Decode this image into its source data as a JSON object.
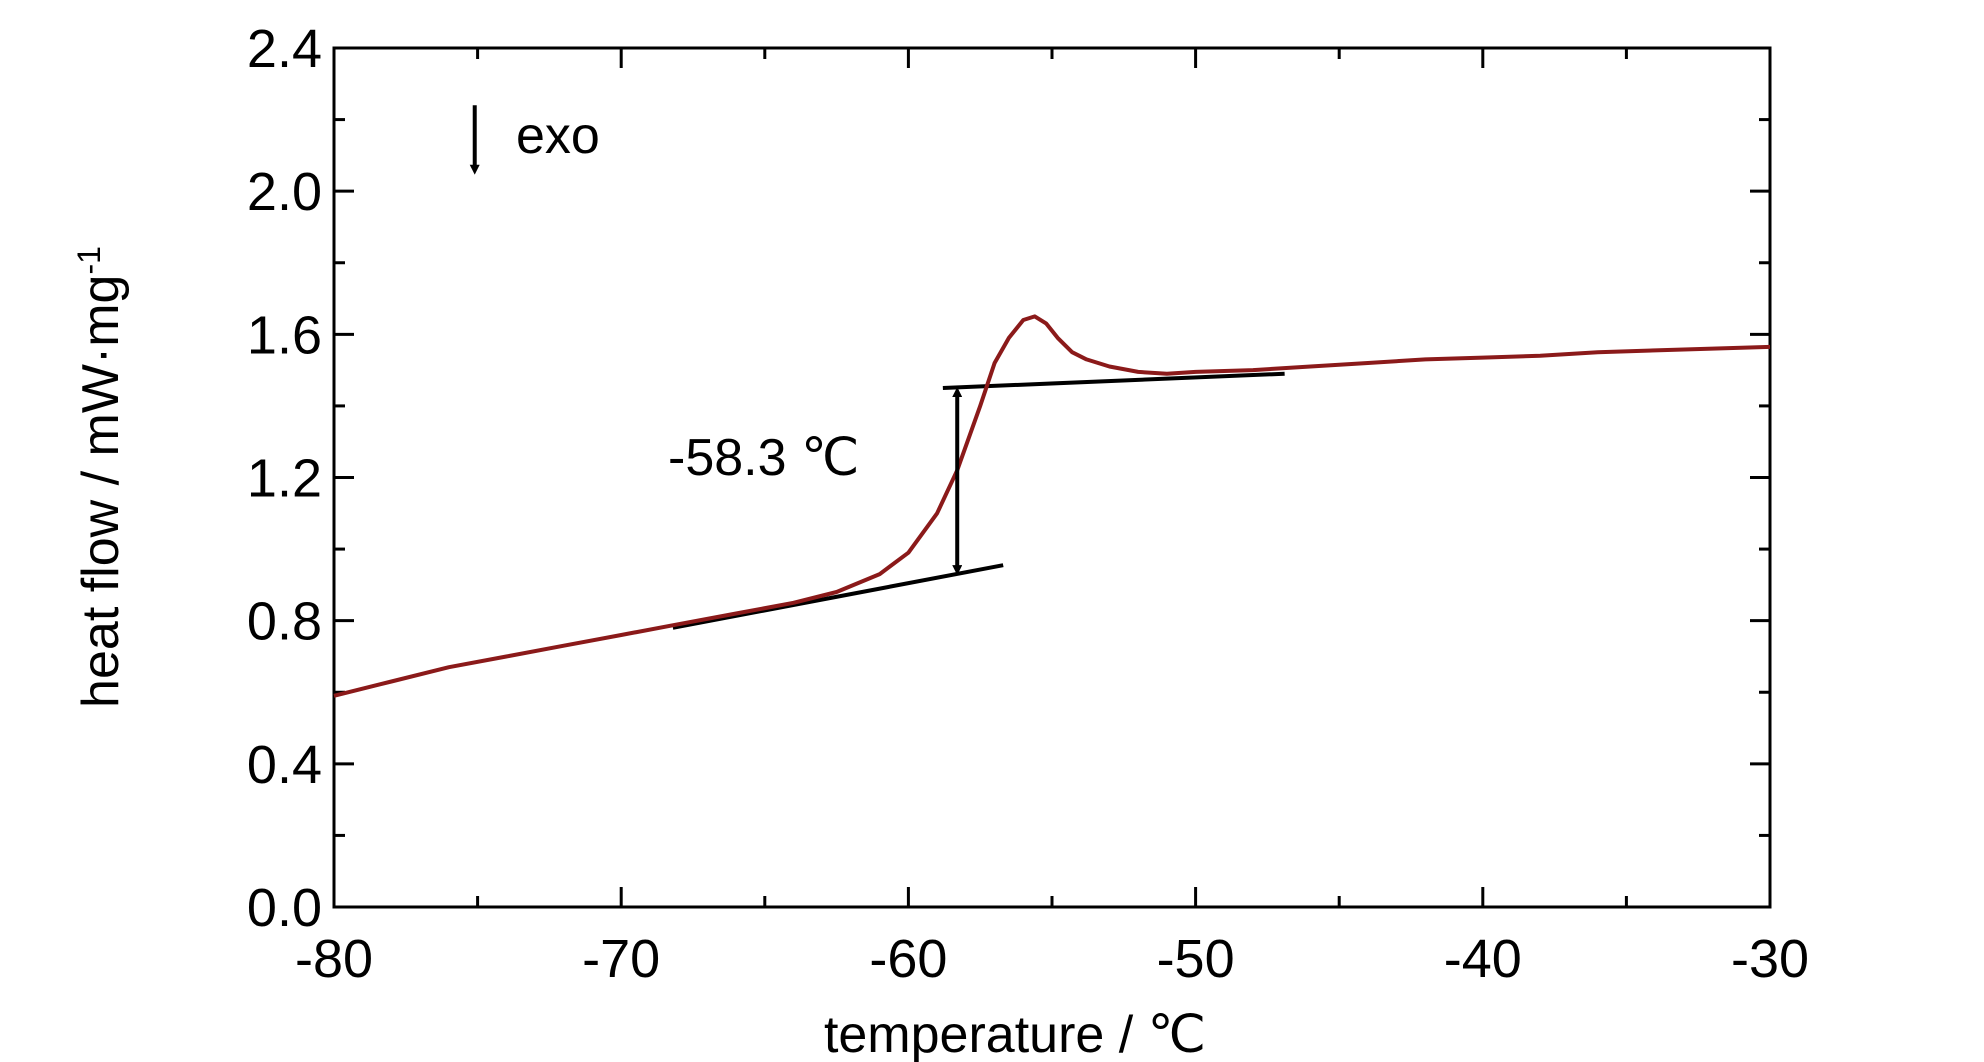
{
  "chart_data": {
    "type": "line",
    "title": "",
    "xlabel": "temperature / ℃",
    "ylabel_main": "heat flow / mW·mg",
    "ylabel_sup": "-1",
    "xlim": [
      -80,
      -30
    ],
    "ylim": [
      0.0,
      2.4
    ],
    "x_ticks": [
      -80,
      -70,
      -60,
      -50,
      -40,
      -30
    ],
    "y_ticks": [
      0.0,
      0.4,
      0.8,
      1.2,
      1.6,
      2.0,
      2.4
    ],
    "grid": false,
    "line_color": "#8b1a1a",
    "series": [
      {
        "x": [
          -80,
          -78,
          -76,
          -74,
          -72,
          -70,
          -68,
          -66,
          -64,
          -62.5,
          -61,
          -60,
          -59,
          -58.3,
          -57.5,
          -57,
          -56.5,
          -56,
          -55.6,
          -55.2,
          -54.8,
          -54.3,
          -53.8,
          -53,
          -52,
          -51,
          -50,
          -48,
          -46,
          -44,
          -42,
          -40,
          -38,
          -36,
          -34,
          -32,
          -30
        ],
        "y": [
          0.59,
          0.63,
          0.67,
          0.7,
          0.73,
          0.76,
          0.79,
          0.82,
          0.85,
          0.88,
          0.93,
          0.99,
          1.1,
          1.22,
          1.4,
          1.52,
          1.59,
          1.64,
          1.65,
          1.63,
          1.59,
          1.55,
          1.53,
          1.51,
          1.495,
          1.49,
          1.495,
          1.5,
          1.51,
          1.52,
          1.53,
          1.535,
          1.54,
          1.55,
          1.555,
          1.56,
          1.565
        ]
      }
    ],
    "baselines": [
      {
        "x": [
          -68.2,
          -56.7
        ],
        "y": [
          0.78,
          0.955
        ]
      },
      {
        "x": [
          -58.8,
          -46.9
        ],
        "y": [
          1.45,
          1.49
        ]
      }
    ],
    "step_marker": {
      "x": -58.3,
      "y_low": 0.93,
      "y_high": 1.45
    },
    "annotations": {
      "glass_transition": "-58.3 ℃",
      "exo": "exo",
      "exo_arrow": {
        "x": -75.1,
        "y_top": 2.24,
        "y_bottom": 2.06
      }
    }
  }
}
